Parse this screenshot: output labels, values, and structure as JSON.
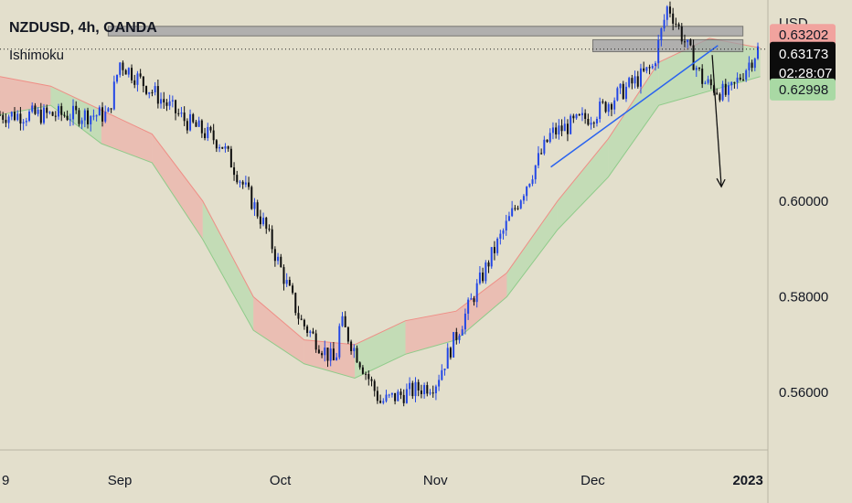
{
  "header": {
    "symbol_line": "NZDUSD, 4h, OANDA",
    "indicator": "Ishimoku"
  },
  "axis": {
    "currency": "USD",
    "ticks": [
      {
        "value": 0.6,
        "label": "0.60000"
      },
      {
        "value": 0.58,
        "label": "0.58000"
      },
      {
        "value": 0.56,
        "label": "0.56000"
      }
    ]
  },
  "price_labels": {
    "cloud_upper": {
      "value": 0.63202,
      "label": "0.63202",
      "color": "#f1a39e"
    },
    "last": {
      "value": 0.63173,
      "label": "0.63173",
      "countdown": "02:28:07",
      "color": "#0c0c0c"
    },
    "cloud_lower": {
      "value": 0.62998,
      "label": "0.62998",
      "color": "#a9d9a4"
    }
  },
  "x_axis": {
    "labels": [
      {
        "text": "9",
        "frac": 0.0
      },
      {
        "text": "Sep",
        "frac": 0.156
      },
      {
        "text": "Oct",
        "frac": 0.365
      },
      {
        "text": "Nov",
        "frac": 0.567
      },
      {
        "text": "Dec",
        "frac": 0.772
      },
      {
        "text": "2023",
        "frac": 0.974
      }
    ]
  },
  "colors": {
    "background": "#e3dfcc",
    "candle": "#2347e6",
    "candle_dark": "#0d0d0d",
    "kumo_bear": "#f1a39e",
    "kumo_bull": "#a9d9a4",
    "trendline": "#2a63ef",
    "zone_fill": "#9fa0a4"
  },
  "chart_data": {
    "type": "line",
    "title": "NZDUSD, 4h, OANDA",
    "xlabel": "",
    "ylabel": "USD",
    "ylim": [
      0.548,
      0.642
    ],
    "grid": false,
    "series": [
      {
        "name": "NZDUSD",
        "x": [
          "Aug 29",
          "Sep 1",
          "Sep 6",
          "Sep 13",
          "Sep 20",
          "Sep 28",
          "Oct 5",
          "Oct 12",
          "Oct 13",
          "Oct 21",
          "Nov 1",
          "Nov 11",
          "Nov 23",
          "Dec 1",
          "Dec 13",
          "Dec 16",
          "Dec 23",
          "Dec 28",
          "Jan 3"
        ],
        "values": [
          0.618,
          0.629,
          0.624,
          0.617,
          0.612,
          0.595,
          0.575,
          0.566,
          0.575,
          0.558,
          0.562,
          0.587,
          0.614,
          0.618,
          0.628,
          0.641,
          0.625,
          0.622,
          0.6317
        ]
      }
    ],
    "kumo_cloud": {
      "upper": [
        0.626,
        0.624,
        0.619,
        0.614,
        0.6,
        0.58,
        0.571,
        0.57,
        0.575,
        0.577,
        0.585,
        0.6,
        0.613,
        0.629,
        0.634,
        0.632
      ],
      "lower": [
        0.618,
        0.62,
        0.612,
        0.608,
        0.592,
        0.573,
        0.566,
        0.563,
        0.568,
        0.571,
        0.58,
        0.594,
        0.605,
        0.62,
        0.623,
        0.626
      ]
    },
    "zones": [
      {
        "from": 0.6345,
        "to": 0.6365,
        "x_start": "Aug 29",
        "x_end": "Dec 31"
      },
      {
        "from": 0.6312,
        "to": 0.6337,
        "x_start": "Dec 1",
        "x_end": "Dec 31"
      }
    ],
    "trendline": {
      "from": {
        "x": "Nov 23",
        "y": 0.6071
      },
      "to": {
        "x": "Dec 26",
        "y": 0.6325
      }
    },
    "projection_arrow": {
      "from": {
        "x": "Jan 3",
        "y": 0.6305
      },
      "to": {
        "x": "Jan 3",
        "y": 0.603
      }
    }
  }
}
